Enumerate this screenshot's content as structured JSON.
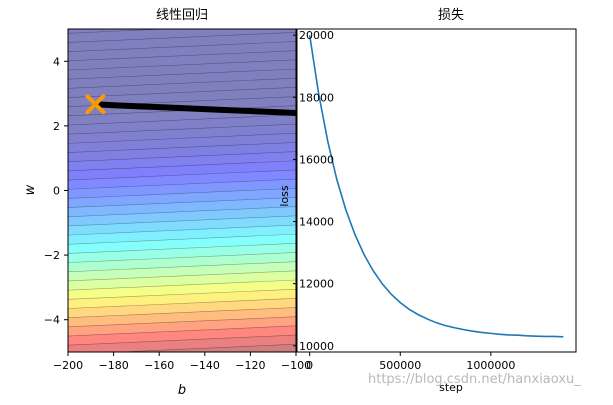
{
  "watermark": "https://blog.csdn.net/hanxiaoxu_",
  "chart_data": [
    {
      "type": "contour",
      "title": "线性回归",
      "xlabel": "b",
      "ylabel": "w",
      "xlim": [
        -200,
        -100
      ],
      "ylim": [
        -5,
        5
      ],
      "x_ticks": [
        -200,
        -180,
        -160,
        -140,
        -120,
        -100
      ],
      "y_ticks": [
        -4,
        -2,
        0,
        2,
        4
      ],
      "x_tick_labels": [
        "−200",
        "−180",
        "−160",
        "−140",
        "−120",
        "−100"
      ],
      "y_tick_labels": [
        "−4",
        "−2",
        "0",
        "2",
        "4"
      ],
      "colormap": "jet",
      "contour_alpha": 0.5,
      "contour_line_color": "#000000",
      "contour_levels": 50,
      "minimum_marker": {
        "b": -188,
        "w": 2.67,
        "shape": "x",
        "color": "#ff9900"
      },
      "descent_path": {
        "color": "#000000",
        "b": [
          -188,
          -180,
          -170,
          -160,
          -150,
          -140,
          -130,
          -120,
          -110,
          -100
        ],
        "w": [
          2.67,
          2.64,
          2.61,
          2.58,
          2.55,
          2.52,
          2.49,
          2.46,
          2.43,
          2.4
        ]
      },
      "grid": false
    },
    {
      "type": "line",
      "title": "损失",
      "xlabel": "step",
      "ylabel": "loss",
      "xlim": [
        -70000,
        1470000
      ],
      "ylim": [
        9800,
        20200
      ],
      "x_ticks": [
        0,
        500000,
        1000000
      ],
      "y_ticks": [
        10000,
        12000,
        14000,
        16000,
        18000,
        20000
      ],
      "x_tick_labels": [
        "0",
        "500000",
        "1000000"
      ],
      "y_tick_labels": [
        "10000",
        "12000",
        "14000",
        "16000",
        "18000",
        "20000"
      ],
      "line_color": "#1f77b4",
      "series": [
        {
          "x": [
            0,
            50000,
            100000,
            150000,
            200000,
            250000,
            300000,
            350000,
            400000,
            450000,
            500000,
            550000,
            600000,
            650000,
            700000,
            750000,
            800000,
            850000,
            900000,
            950000,
            1000000,
            1050000,
            1100000,
            1150000,
            1200000,
            1250000,
            1300000,
            1350000,
            1400000
          ],
          "values": [
            20000,
            18100,
            16580,
            15350,
            14370,
            13580,
            12940,
            12420,
            12000,
            11660,
            11390,
            11170,
            11000,
            10860,
            10740,
            10650,
            10580,
            10520,
            10470,
            10430,
            10400,
            10370,
            10350,
            10340,
            10320,
            10310,
            10300,
            10300,
            10290
          ]
        }
      ],
      "grid": false
    }
  ]
}
